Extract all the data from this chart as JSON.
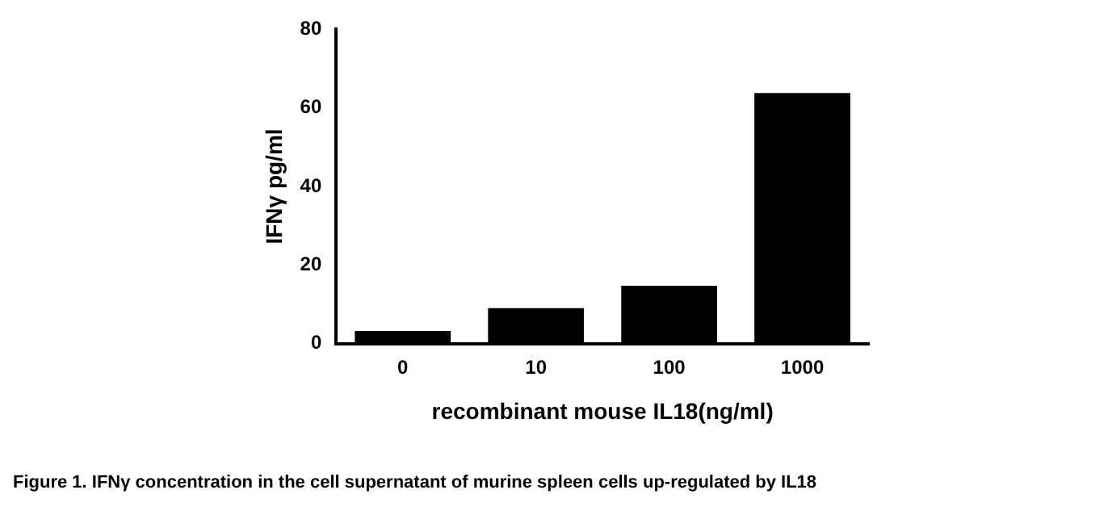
{
  "chart_data": {
    "type": "bar",
    "xlabel": "recombinant mouse IL18(ng/ml)",
    "ylabel": "IFNγ pg/ml",
    "categories": [
      "0",
      "10",
      "100",
      "1000"
    ],
    "values": [
      3.2,
      9,
      14.7,
      63.8
    ],
    "color": "#000000",
    "ylim": [
      0,
      80
    ],
    "yticks": [
      0,
      20,
      40,
      60,
      80
    ],
    "grid": false,
    "legend": false,
    "annotations": [
      "Figure 1. IFNγ concentration in the cell supernatant of murine spleen cells up-regulated by IL18"
    ]
  }
}
